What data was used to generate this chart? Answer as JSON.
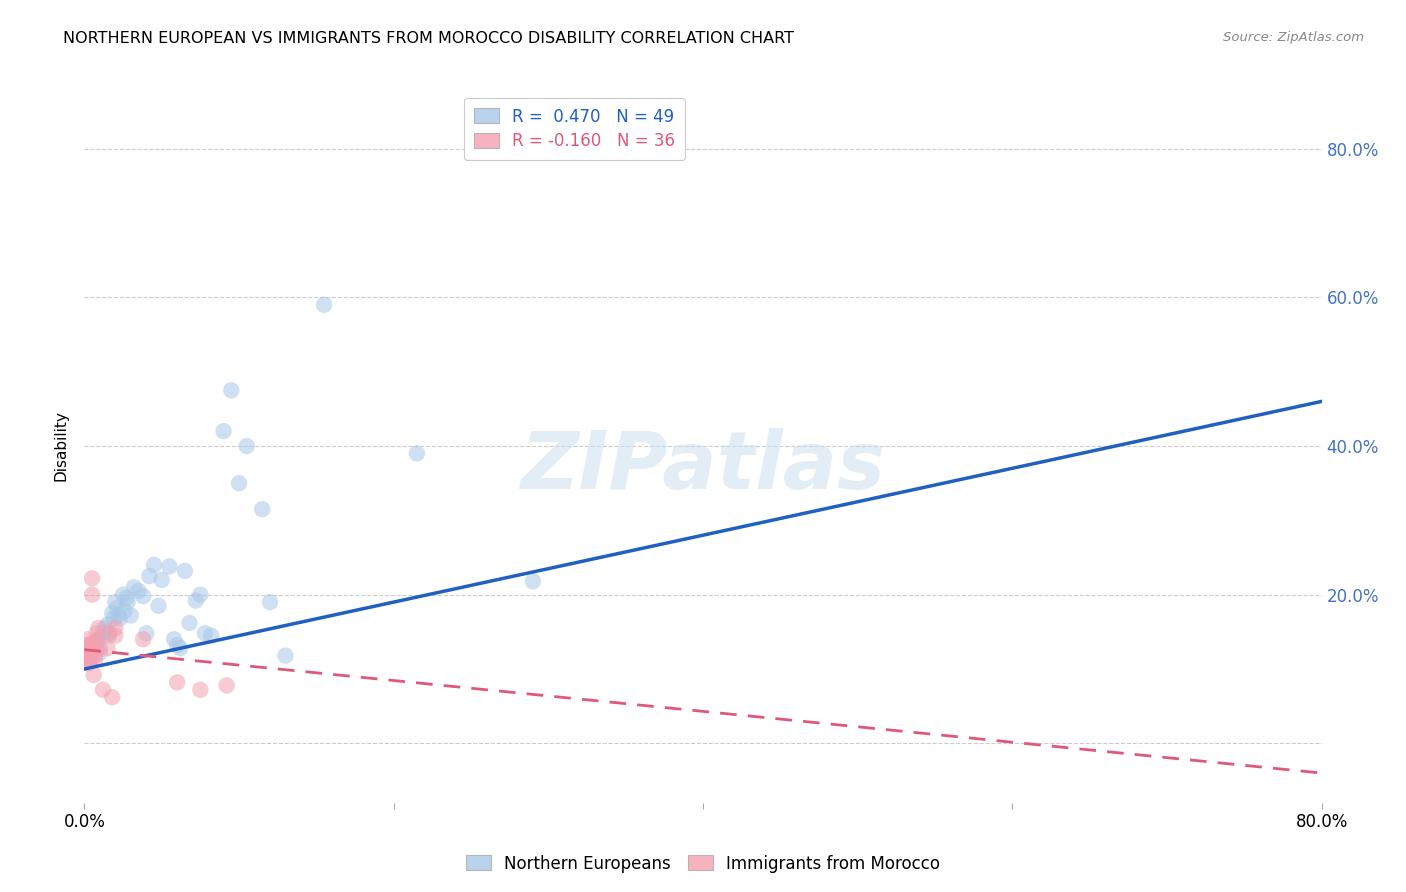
{
  "title": "NORTHERN EUROPEAN VS IMMIGRANTS FROM MOROCCO DISABILITY CORRELATION CHART",
  "source": "Source: ZipAtlas.com",
  "ylabel": "Disability",
  "xlabel": "",
  "xlim": [
    0.0,
    0.8
  ],
  "ylim": [
    -0.08,
    0.88
  ],
  "yticks": [
    0.0,
    0.2,
    0.4,
    0.6,
    0.8
  ],
  "ytick_labels_right": [
    "",
    "20.0%",
    "40.0%",
    "60.0%",
    "80.0%"
  ],
  "xticks": [
    0.0,
    0.2,
    0.4,
    0.6,
    0.8
  ],
  "xtick_labels": [
    "0.0%",
    "",
    "",
    "",
    "80.0%"
  ],
  "watermark": "ZIPatlas",
  "legend_r1": "R =  0.470   N = 49",
  "legend_r2": "R = -0.160   N = 36",
  "legend_label1": "Northern Europeans",
  "legend_label2": "Immigrants from Morocco",
  "blue_color": "#a8c8e8",
  "pink_color": "#f4a0b0",
  "blue_line_color": "#2060c0",
  "pink_line_color": "#e05878",
  "blue_line": [
    0.0,
    0.1,
    0.8,
    0.46
  ],
  "pink_line": [
    0.0,
    0.126,
    0.8,
    -0.04
  ],
  "blue_points": [
    [
      0.005,
      0.125
    ],
    [
      0.007,
      0.135
    ],
    [
      0.008,
      0.128
    ],
    [
      0.009,
      0.14
    ],
    [
      0.01,
      0.122
    ],
    [
      0.012,
      0.148
    ],
    [
      0.013,
      0.155
    ],
    [
      0.014,
      0.15
    ],
    [
      0.015,
      0.16
    ],
    [
      0.016,
      0.145
    ],
    [
      0.018,
      0.175
    ],
    [
      0.019,
      0.168
    ],
    [
      0.02,
      0.19
    ],
    [
      0.021,
      0.182
    ],
    [
      0.022,
      0.172
    ],
    [
      0.023,
      0.168
    ],
    [
      0.025,
      0.2
    ],
    [
      0.026,
      0.178
    ],
    [
      0.027,
      0.195
    ],
    [
      0.028,
      0.19
    ],
    [
      0.03,
      0.172
    ],
    [
      0.032,
      0.21
    ],
    [
      0.035,
      0.205
    ],
    [
      0.038,
      0.198
    ],
    [
      0.04,
      0.148
    ],
    [
      0.042,
      0.225
    ],
    [
      0.045,
      0.24
    ],
    [
      0.048,
      0.185
    ],
    [
      0.05,
      0.22
    ],
    [
      0.055,
      0.238
    ],
    [
      0.058,
      0.14
    ],
    [
      0.06,
      0.132
    ],
    [
      0.062,
      0.128
    ],
    [
      0.065,
      0.232
    ],
    [
      0.068,
      0.162
    ],
    [
      0.072,
      0.192
    ],
    [
      0.075,
      0.2
    ],
    [
      0.078,
      0.148
    ],
    [
      0.082,
      0.145
    ],
    [
      0.09,
      0.42
    ],
    [
      0.095,
      0.475
    ],
    [
      0.1,
      0.35
    ],
    [
      0.105,
      0.4
    ],
    [
      0.115,
      0.315
    ],
    [
      0.12,
      0.19
    ],
    [
      0.13,
      0.118
    ],
    [
      0.155,
      0.59
    ],
    [
      0.215,
      0.39
    ],
    [
      0.29,
      0.218
    ]
  ],
  "pink_points": [
    [
      0.001,
      0.125
    ],
    [
      0.001,
      0.132
    ],
    [
      0.001,
      0.118
    ],
    [
      0.002,
      0.14
    ],
    [
      0.002,
      0.108
    ],
    [
      0.002,
      0.128
    ],
    [
      0.002,
      0.12
    ],
    [
      0.002,
      0.112
    ],
    [
      0.003,
      0.13
    ],
    [
      0.003,
      0.125
    ],
    [
      0.003,
      0.118
    ],
    [
      0.003,
      0.108
    ],
    [
      0.004,
      0.132
    ],
    [
      0.004,
      0.112
    ],
    [
      0.004,
      0.122
    ],
    [
      0.005,
      0.222
    ],
    [
      0.005,
      0.2
    ],
    [
      0.005,
      0.135
    ],
    [
      0.006,
      0.128
    ],
    [
      0.006,
      0.092
    ],
    [
      0.007,
      0.118
    ],
    [
      0.007,
      0.112
    ],
    [
      0.008,
      0.138
    ],
    [
      0.008,
      0.148
    ],
    [
      0.009,
      0.155
    ],
    [
      0.01,
      0.128
    ],
    [
      0.012,
      0.072
    ],
    [
      0.015,
      0.128
    ],
    [
      0.016,
      0.148
    ],
    [
      0.018,
      0.062
    ],
    [
      0.02,
      0.155
    ],
    [
      0.02,
      0.145
    ],
    [
      0.038,
      0.14
    ],
    [
      0.06,
      0.082
    ],
    [
      0.075,
      0.072
    ],
    [
      0.092,
      0.078
    ]
  ],
  "background_color": "#ffffff",
  "grid_color": "#cccccc"
}
